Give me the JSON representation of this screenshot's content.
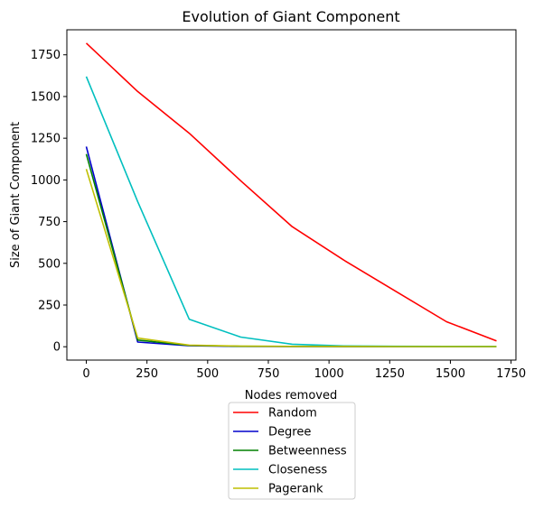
{
  "chart_data": {
    "type": "line",
    "title": "Evolution of Giant Component",
    "xlabel": "Nodes removed",
    "ylabel": "Size of Giant Component",
    "xlim": [
      -80,
      1770
    ],
    "ylim": [
      -80,
      1900
    ],
    "xticks": [
      0,
      250,
      500,
      750,
      1000,
      1250,
      1500,
      1750
    ],
    "yticks": [
      0,
      250,
      500,
      750,
      1000,
      1250,
      1500,
      1750
    ],
    "grid": false,
    "legend_position": "below plot",
    "series": [
      {
        "name": "Random",
        "color": "#ff0000",
        "x": [
          0,
          212,
          424,
          636,
          848,
          1060,
          1272,
          1484,
          1690
        ],
        "y": [
          1820,
          1530,
          1280,
          995,
          720,
          520,
          335,
          150,
          35
        ]
      },
      {
        "name": "Degree",
        "color": "#0000cc",
        "x": [
          0,
          212,
          424,
          636,
          848,
          1060,
          1272,
          1484,
          1690
        ],
        "y": [
          1200,
          28,
          6,
          2,
          1,
          1,
          1,
          1,
          1
        ]
      },
      {
        "name": "Betweenness",
        "color": "#008000",
        "x": [
          0,
          212,
          424,
          636,
          848,
          1060,
          1272,
          1484,
          1690
        ],
        "y": [
          1155,
          40,
          8,
          3,
          2,
          1,
          1,
          1,
          1
        ]
      },
      {
        "name": "Closeness",
        "color": "#00bfbf",
        "x": [
          0,
          212,
          424,
          636,
          848,
          1060,
          1272,
          1484,
          1690
        ],
        "y": [
          1620,
          870,
          165,
          58,
          15,
          5,
          3,
          2,
          2
        ]
      },
      {
        "name": "Pagerank",
        "color": "#bfbf00",
        "x": [
          0,
          212,
          424,
          636,
          848,
          1060,
          1272,
          1484,
          1690
        ],
        "y": [
          1065,
          52,
          10,
          4,
          2,
          2,
          1,
          1,
          1
        ]
      }
    ]
  }
}
